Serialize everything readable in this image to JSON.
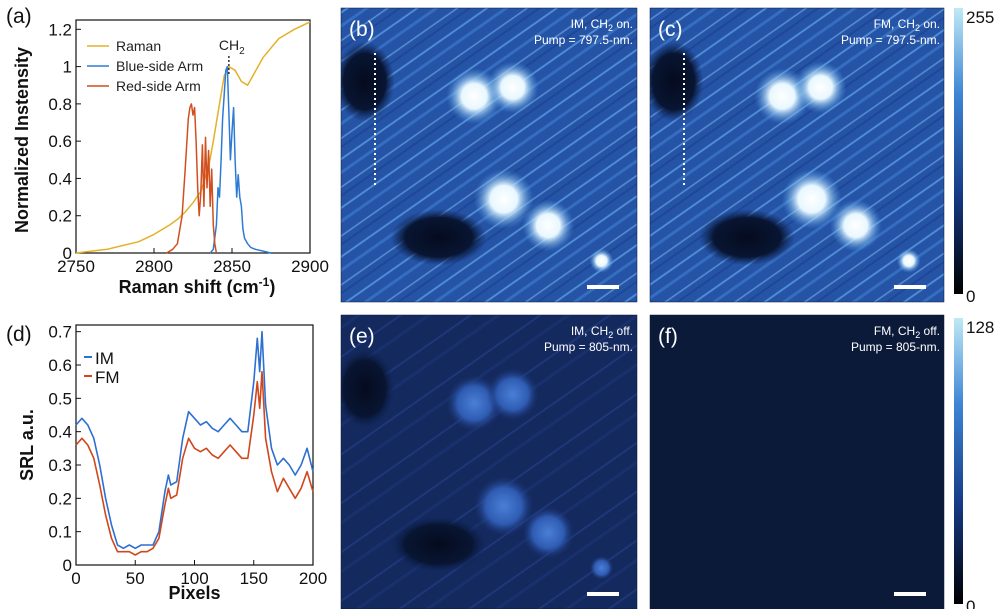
{
  "colors": {
    "raman": "#e3b128",
    "blue_arm": "#2e7bd6",
    "red_arm": "#d14f1f",
    "IM": "#2e6fd1",
    "FM": "#d1461c",
    "image_bg": "#17356f",
    "image_dark": "#0c1a3a"
  },
  "chart_data": [
    {
      "panel": "(a)",
      "type": "line",
      "xlabel": "Raman shift (cm",
      "xlabel_sup": "-1",
      "xlabel_end": ")",
      "ylabel": "Normalized Instensity",
      "xlim": [
        2750,
        2900
      ],
      "ylim": [
        0,
        1.25
      ],
      "xticks": [
        "2750",
        "2800",
        "2850",
        "2900"
      ],
      "yticks": [
        "0",
        "0.2",
        "0.4",
        "0.6",
        "0.8",
        "1",
        "1.2"
      ],
      "annotation": "CH",
      "annotation_sub": "2",
      "annotation_x": 2848,
      "legend": [
        "Raman",
        "Blue-side Arm",
        "Red-side Arm"
      ],
      "series": [
        {
          "name": "Raman",
          "x": [
            2750,
            2760,
            2770,
            2780,
            2790,
            2800,
            2810,
            2815,
            2820,
            2825,
            2830,
            2835,
            2838,
            2842,
            2845,
            2848,
            2852,
            2856,
            2860,
            2864,
            2870,
            2880,
            2890,
            2900
          ],
          "y": [
            0.0,
            0.01,
            0.02,
            0.04,
            0.06,
            0.1,
            0.15,
            0.18,
            0.22,
            0.27,
            0.33,
            0.46,
            0.6,
            0.8,
            0.95,
            1.0,
            0.98,
            0.92,
            0.9,
            0.96,
            1.05,
            1.15,
            1.2,
            1.24
          ]
        },
        {
          "name": "Blue-side Arm",
          "x": [
            2836,
            2838,
            2840,
            2841,
            2842,
            2843,
            2844,
            2845,
            2846,
            2847,
            2848,
            2849,
            2850,
            2851,
            2852,
            2853,
            2854,
            2855,
            2856,
            2857,
            2858,
            2860,
            2862,
            2865,
            2870,
            2875
          ],
          "y": [
            0.0,
            0.02,
            0.15,
            0.35,
            0.3,
            0.5,
            0.72,
            0.85,
            0.98,
            1.0,
            0.75,
            0.5,
            0.65,
            0.78,
            0.5,
            0.3,
            0.42,
            0.3,
            0.25,
            0.13,
            0.08,
            0.05,
            0.03,
            0.02,
            0.01,
            0.0
          ]
        },
        {
          "name": "Red-side Arm",
          "x": [
            2808,
            2812,
            2815,
            2818,
            2820,
            2822,
            2823,
            2824,
            2825,
            2826,
            2827,
            2828,
            2829,
            2830,
            2831,
            2832,
            2833,
            2834,
            2835,
            2836,
            2837,
            2838,
            2839,
            2840
          ],
          "y": [
            0.0,
            0.02,
            0.05,
            0.2,
            0.45,
            0.72,
            0.78,
            0.8,
            0.74,
            0.78,
            0.6,
            0.35,
            0.2,
            0.32,
            0.58,
            0.25,
            0.62,
            0.35,
            0.55,
            0.25,
            0.45,
            0.15,
            0.05,
            0.0
          ]
        }
      ]
    },
    {
      "panel": "(d)",
      "type": "line",
      "xlabel": "Pixels",
      "ylabel": "SRL a.u.",
      "xlim": [
        0,
        200
      ],
      "ylim": [
        0,
        0.72
      ],
      "xticks": [
        "0",
        "50",
        "100",
        "150",
        "200"
      ],
      "yticks": [
        "0",
        "0.1",
        "0.2",
        "0.3",
        "0.4",
        "0.5",
        "0.6",
        "0.7"
      ],
      "legend": [
        "IM",
        "FM"
      ],
      "series": [
        {
          "name": "IM",
          "x": [
            0,
            5,
            10,
            15,
            20,
            25,
            30,
            35,
            40,
            45,
            50,
            55,
            60,
            65,
            70,
            75,
            78,
            80,
            85,
            90,
            95,
            100,
            105,
            110,
            115,
            120,
            125,
            130,
            135,
            140,
            145,
            150,
            153,
            155,
            157,
            160,
            165,
            170,
            175,
            180,
            185,
            190,
            195,
            200
          ],
          "y": [
            0.42,
            0.44,
            0.42,
            0.38,
            0.3,
            0.2,
            0.12,
            0.06,
            0.05,
            0.06,
            0.05,
            0.06,
            0.06,
            0.06,
            0.1,
            0.22,
            0.27,
            0.24,
            0.25,
            0.38,
            0.46,
            0.44,
            0.42,
            0.43,
            0.41,
            0.4,
            0.42,
            0.44,
            0.42,
            0.4,
            0.4,
            0.55,
            0.68,
            0.58,
            0.7,
            0.48,
            0.35,
            0.3,
            0.32,
            0.3,
            0.27,
            0.3,
            0.35,
            0.28
          ]
        },
        {
          "name": "FM",
          "x": [
            0,
            5,
            10,
            15,
            20,
            25,
            30,
            35,
            40,
            45,
            50,
            55,
            60,
            65,
            70,
            75,
            78,
            80,
            85,
            90,
            95,
            100,
            105,
            110,
            115,
            120,
            125,
            130,
            135,
            140,
            145,
            150,
            153,
            155,
            157,
            160,
            165,
            170,
            175,
            180,
            185,
            190,
            195,
            200
          ],
          "y": [
            0.36,
            0.38,
            0.36,
            0.32,
            0.24,
            0.15,
            0.08,
            0.04,
            0.04,
            0.04,
            0.03,
            0.04,
            0.04,
            0.05,
            0.08,
            0.18,
            0.23,
            0.2,
            0.21,
            0.32,
            0.38,
            0.35,
            0.34,
            0.35,
            0.33,
            0.32,
            0.34,
            0.36,
            0.34,
            0.32,
            0.32,
            0.45,
            0.55,
            0.47,
            0.58,
            0.38,
            0.28,
            0.22,
            0.26,
            0.23,
            0.2,
            0.23,
            0.28,
            0.22
          ]
        }
      ]
    }
  ],
  "images": [
    {
      "tag": "(b)",
      "note1_a": "IM, CH",
      "note1_sub": "2",
      "note1_b": " on.",
      "note2": "Pump = 797.5-nm.",
      "state": "on",
      "profile_line": true
    },
    {
      "tag": "(c)",
      "note1_a": "FM, CH",
      "note1_sub": "2",
      "note1_b": " on.",
      "note2": "Pump = 797.5-nm.",
      "state": "on",
      "profile_line": true
    },
    {
      "tag": "(e)",
      "note1_a": "IM, CH",
      "note1_sub": "2",
      "note1_b": " off.",
      "note2": "Pump = 805-nm.",
      "state": "dim",
      "profile_line": false
    },
    {
      "tag": "(f)",
      "note1_a": "FM, CH",
      "note1_sub": "2",
      "note1_b": " off.",
      "note2": "Pump = 805-nm.",
      "state": "dark",
      "profile_line": false
    }
  ],
  "colorbars": [
    {
      "max": "255",
      "min": "0"
    },
    {
      "max": "128",
      "min": "0"
    }
  ]
}
